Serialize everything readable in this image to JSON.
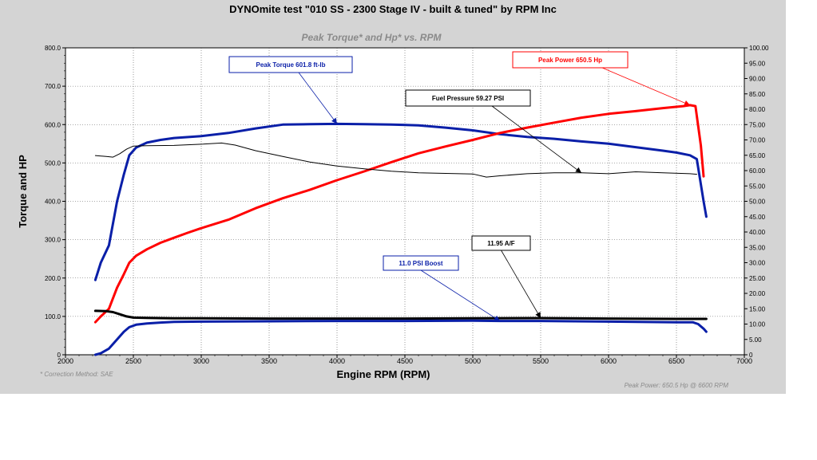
{
  "page_title": "DYNOmite test \"010 SS - 2300 Stage IV - built & tuned\" by RPM Inc",
  "chart_data": {
    "type": "line",
    "title": "Peak Torque* and Hp* vs. RPM",
    "xlabel": "Engine RPM (RPM)",
    "ylabel": "Torque and HP",
    "xlim": [
      2000,
      7000
    ],
    "ylim": [
      0,
      800
    ],
    "y2lim": [
      0,
      100
    ],
    "x_ticks": [
      "2000",
      "2500",
      "3000",
      "3500",
      "4000",
      "4500",
      "5000",
      "5500",
      "6000",
      "6500",
      "7000"
    ],
    "y_ticks": [
      "0",
      "100.0",
      "200.0",
      "300.0",
      "400.0",
      "500.0",
      "600.0",
      "700.0",
      "800.0"
    ],
    "y2_ticks": [
      "0",
      "5.00",
      "10.00",
      "15.00",
      "20.00",
      "25.00",
      "30.00",
      "35.00",
      "40.00",
      "45.00",
      "50.00",
      "55.00",
      "60.00",
      "65.00",
      "70.00",
      "75.00",
      "80.00",
      "85.00",
      "90.00",
      "95.00",
      "100.00"
    ],
    "grid": true,
    "series": [
      {
        "color": "#0a1fa8",
        "axis": "left",
        "width": 3,
        "points": [
          [
            2220,
            195
          ],
          [
            2260,
            240
          ],
          [
            2320,
            285
          ],
          [
            2380,
            400
          ],
          [
            2430,
            470
          ],
          [
            2470,
            520
          ],
          [
            2520,
            540
          ],
          [
            2600,
            553
          ],
          [
            2700,
            560
          ],
          [
            2800,
            565
          ],
          [
            3000,
            570
          ],
          [
            3200,
            578
          ],
          [
            3400,
            590
          ],
          [
            3600,
            600
          ],
          [
            3800,
            601
          ],
          [
            4000,
            601.8
          ],
          [
            4200,
            601
          ],
          [
            4400,
            600
          ],
          [
            4600,
            598
          ],
          [
            4800,
            592
          ],
          [
            5000,
            585
          ],
          [
            5200,
            575
          ],
          [
            5400,
            568
          ],
          [
            5600,
            563
          ],
          [
            5800,
            556
          ],
          [
            6000,
            550
          ],
          [
            6200,
            541
          ],
          [
            6400,
            532
          ],
          [
            6500,
            527
          ],
          [
            6600,
            520
          ],
          [
            6650,
            510
          ],
          [
            6700,
            400
          ],
          [
            6720,
            360
          ]
        ]
      },
      {
        "color": "#ff0000",
        "axis": "left",
        "width": 3,
        "points": [
          [
            2220,
            85
          ],
          [
            2260,
            100
          ],
          [
            2320,
            120
          ],
          [
            2380,
            175
          ],
          [
            2430,
            210
          ],
          [
            2470,
            240
          ],
          [
            2520,
            258
          ],
          [
            2600,
            275
          ],
          [
            2700,
            292
          ],
          [
            2800,
            305
          ],
          [
            2900,
            318
          ],
          [
            3000,
            330
          ],
          [
            3200,
            352
          ],
          [
            3400,
            382
          ],
          [
            3600,
            408
          ],
          [
            3800,
            430
          ],
          [
            4000,
            455
          ],
          [
            4200,
            478
          ],
          [
            4400,
            502
          ],
          [
            4600,
            525
          ],
          [
            4800,
            543
          ],
          [
            5000,
            560
          ],
          [
            5200,
            578
          ],
          [
            5400,
            592
          ],
          [
            5600,
            605
          ],
          [
            5800,
            618
          ],
          [
            6000,
            628
          ],
          [
            6200,
            635
          ],
          [
            6400,
            643
          ],
          [
            6550,
            648
          ],
          [
            6600,
            650.5
          ],
          [
            6640,
            648
          ],
          [
            6680,
            545
          ],
          [
            6700,
            465
          ]
        ]
      },
      {
        "color": "#000000",
        "axis": "right",
        "width": 1,
        "points": [
          [
            2220,
            64.9
          ],
          [
            2300,
            64.6
          ],
          [
            2350,
            64.4
          ],
          [
            2400,
            65.5
          ],
          [
            2450,
            67.0
          ],
          [
            2500,
            68.0
          ],
          [
            2600,
            68.1
          ],
          [
            2800,
            68.2
          ],
          [
            3000,
            68.6
          ],
          [
            3150,
            69.0
          ],
          [
            3250,
            68.3
          ],
          [
            3400,
            66.5
          ],
          [
            3600,
            64.6
          ],
          [
            3800,
            62.8
          ],
          [
            4000,
            61.5
          ],
          [
            4200,
            60.6
          ],
          [
            4400,
            59.8
          ],
          [
            4600,
            59.3
          ],
          [
            4800,
            59.1
          ],
          [
            5000,
            58.9
          ],
          [
            5100,
            57.9
          ],
          [
            5200,
            58.3
          ],
          [
            5400,
            59.0
          ],
          [
            5600,
            59.3
          ],
          [
            5800,
            59.27
          ],
          [
            6000,
            59.0
          ],
          [
            6200,
            59.6
          ],
          [
            6400,
            59.3
          ],
          [
            6600,
            59.0
          ],
          [
            6650,
            58.8
          ]
        ]
      },
      {
        "color": "#000000",
        "axis": "right",
        "width": 3,
        "points": [
          [
            2220,
            14.3
          ],
          [
            2300,
            14.2
          ],
          [
            2350,
            13.9
          ],
          [
            2400,
            13.2
          ],
          [
            2450,
            12.5
          ],
          [
            2500,
            12.1
          ],
          [
            2600,
            12.0
          ],
          [
            2800,
            11.9
          ],
          [
            3000,
            11.9
          ],
          [
            3500,
            11.8
          ],
          [
            4000,
            11.8
          ],
          [
            4500,
            11.8
          ],
          [
            5000,
            11.9
          ],
          [
            5500,
            11.95
          ],
          [
            6000,
            11.8
          ],
          [
            6500,
            11.7
          ],
          [
            6650,
            11.7
          ],
          [
            6720,
            11.7
          ]
        ]
      },
      {
        "color": "#0a1fa8",
        "axis": "right",
        "width": 3,
        "points": [
          [
            2220,
            0
          ],
          [
            2260,
            0.5
          ],
          [
            2320,
            2.0
          ],
          [
            2380,
            5.0
          ],
          [
            2430,
            7.5
          ],
          [
            2470,
            9.0
          ],
          [
            2520,
            9.8
          ],
          [
            2600,
            10.2
          ],
          [
            2700,
            10.5
          ],
          [
            2800,
            10.7
          ],
          [
            3000,
            10.8
          ],
          [
            3500,
            10.9
          ],
          [
            4000,
            11.0
          ],
          [
            4500,
            11.0
          ],
          [
            5000,
            11.1
          ],
          [
            5200,
            11.0
          ],
          [
            5500,
            11.0
          ],
          [
            6000,
            10.8
          ],
          [
            6500,
            10.6
          ],
          [
            6620,
            10.6
          ],
          [
            6660,
            10.0
          ],
          [
            6700,
            8.5
          ],
          [
            6720,
            7.5
          ]
        ]
      }
    ],
    "annotations": [
      {
        "text": "Peak Torque  601.8 ft-lb",
        "color": "#0a1fa8",
        "bg": "#ffffff",
        "target": [
          4000,
          601.8
        ],
        "target_axis": "left"
      },
      {
        "text": "Peak Power  650.5 Hp",
        "color": "#ff0000",
        "bg": "#ffffff",
        "target": [
          6600,
          650.5
        ],
        "target_axis": "left"
      },
      {
        "text": "Fuel Pressure 59.27 PSI",
        "color": "#000000",
        "bg": "#ffffff",
        "target": [
          5800,
          59.27
        ],
        "target_axis": "right"
      },
      {
        "text": "11.95 A/F",
        "color": "#000000",
        "bg": "#ffffff",
        "target": [
          5500,
          11.95
        ],
        "target_axis": "right"
      },
      {
        "text": "11.0 PSI Boost",
        "color": "#0a1fa8",
        "bg": "#ffffff",
        "target": [
          5200,
          11.0
        ],
        "target_axis": "right"
      }
    ],
    "footnote_left": "* Correction Method: SAE",
    "footnote_right": "Peak Power: 650.5 Hp @ 6600 RPM"
  }
}
